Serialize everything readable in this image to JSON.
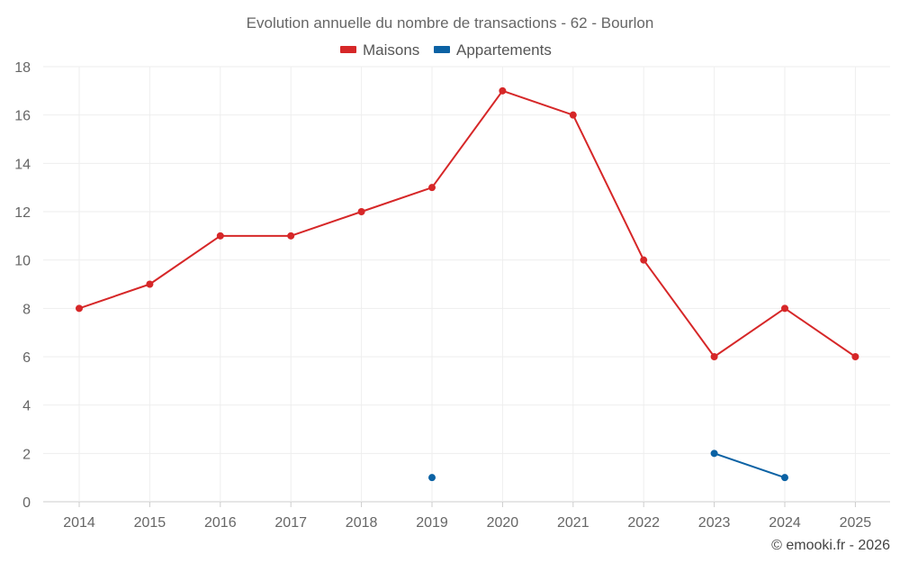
{
  "chart_data": {
    "type": "line",
    "title": "Evolution annuelle du nombre de transactions - 62 - Bourlon",
    "xlabel": "",
    "ylabel": "",
    "categories": [
      "2014",
      "2015",
      "2016",
      "2017",
      "2018",
      "2019",
      "2020",
      "2021",
      "2022",
      "2023",
      "2024",
      "2025"
    ],
    "ylim": [
      0,
      18
    ],
    "yticks": [
      "0",
      "2",
      "4",
      "6",
      "8",
      "10",
      "12",
      "14",
      "16",
      "18"
    ],
    "grid": true,
    "legend_position": "top-center",
    "series": [
      {
        "name": "Maisons",
        "color": "#d62728",
        "values": [
          8,
          9,
          11,
          11,
          12,
          13,
          17,
          16,
          10,
          6,
          8,
          6
        ]
      },
      {
        "name": "Appartements",
        "color": "#0b62a4",
        "values": [
          null,
          null,
          null,
          null,
          null,
          1,
          null,
          null,
          null,
          2,
          1,
          null
        ]
      }
    ]
  },
  "credit": "© emooki.fr - 2026"
}
